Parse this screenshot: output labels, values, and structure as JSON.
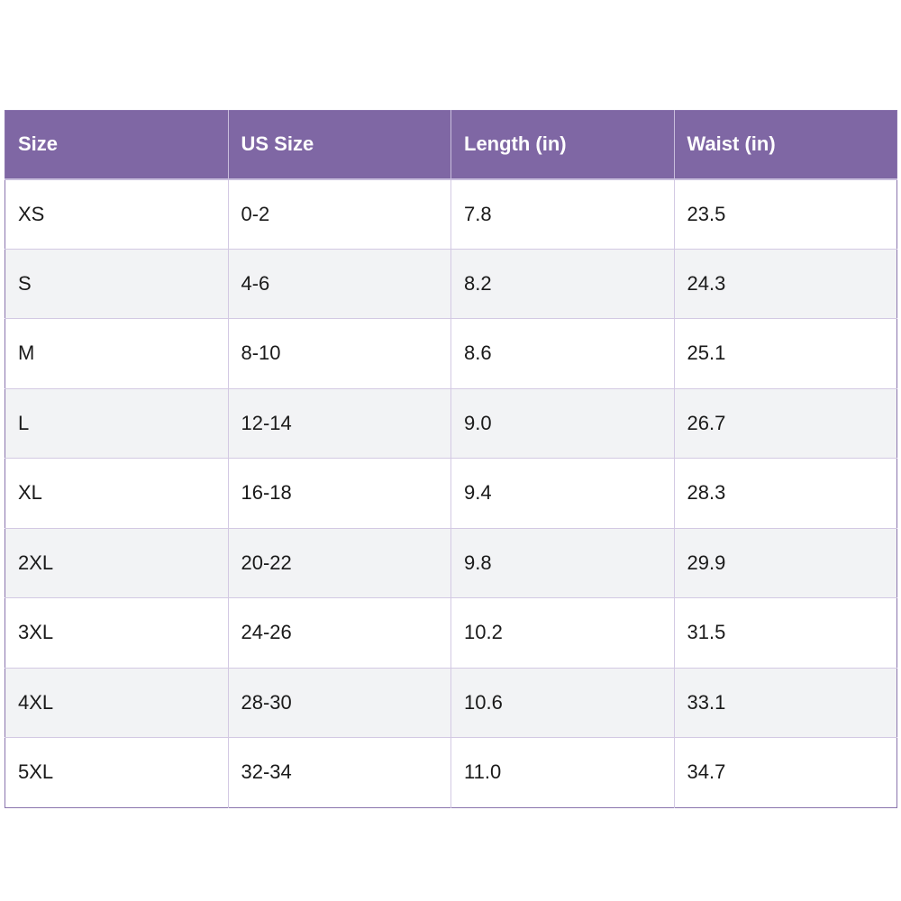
{
  "table": {
    "headers": [
      "Size",
      "US Size",
      "Length (in)",
      "Waist (in)"
    ],
    "rows": [
      [
        "XS",
        "0-2",
        "7.8",
        "23.5"
      ],
      [
        "S",
        "4-6",
        "8.2",
        "24.3"
      ],
      [
        "M",
        "8-10",
        "8.6",
        "25.1"
      ],
      [
        "L",
        "12-14",
        "9.0",
        "26.7"
      ],
      [
        "XL",
        "16-18",
        "9.4",
        "28.3"
      ],
      [
        "2XL",
        "20-22",
        "9.8",
        "29.9"
      ],
      [
        "3XL",
        "24-26",
        "10.2",
        "31.5"
      ],
      [
        "4XL",
        "28-30",
        "10.6",
        "33.1"
      ],
      [
        "5XL",
        "32-34",
        "11.0",
        "34.7"
      ]
    ]
  },
  "colors": {
    "header_bg": "#7f67a4",
    "header_text": "#ffffff",
    "row_alt_bg": "#f2f3f5",
    "grid_line": "#d3c9e3"
  }
}
